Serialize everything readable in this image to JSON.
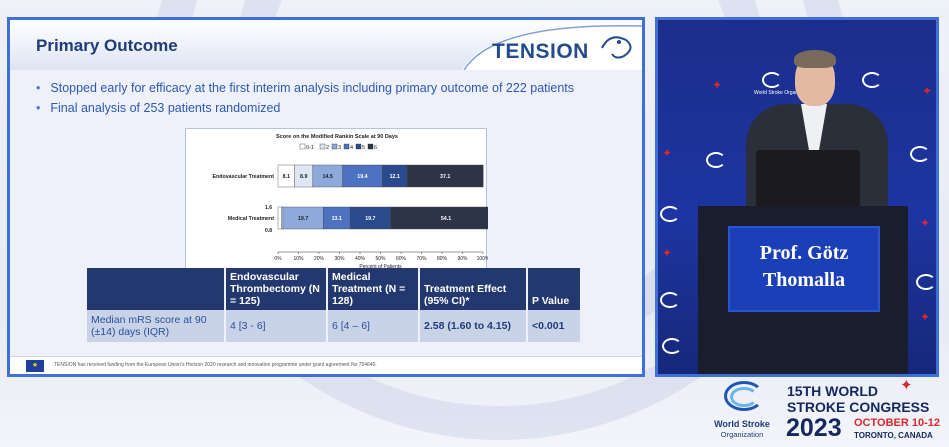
{
  "slide": {
    "title": "Primary Outcome",
    "logo_text": "TENSION",
    "bullets": [
      "Stopped early for efficacy at the first interim analysis including primary outcome of 222 patients",
      "Final analysis of 253 patients randomized"
    ],
    "footer_text": "TENSION has received funding from the European Union's Horizon 2020 research and innovation programme under grant agreement No 754640."
  },
  "chart_data": {
    "type": "bar",
    "orientation": "horizontal-stacked-percent",
    "title": "Score on the Modified Rankin Scale at 90 Days",
    "xlabel": "Percent of Patients",
    "ylabel": "",
    "xlim": [
      0,
      100
    ],
    "x_ticks": [
      "0%",
      "10%",
      "20%",
      "30%",
      "40%",
      "50%",
      "60%",
      "70%",
      "80%",
      "90%",
      "100%"
    ],
    "categories": [
      "0-1",
      "2",
      "3",
      "4",
      "5",
      "6"
    ],
    "colors": [
      "#ffffff",
      "#dfe6f3",
      "#8ea9dc",
      "#4d72bf",
      "#2b4a8e",
      "#2e3447"
    ],
    "rows": [
      {
        "label": "Endovascular Treatment",
        "values": [
          8.1,
          8.9,
          14.5,
          19.4,
          12.1,
          37.1
        ]
      },
      {
        "label": "Medical Treatment",
        "values": [
          1.6,
          0.8,
          19.7,
          13.1,
          19.7,
          54.1
        ]
      }
    ],
    "small_labels": [
      "1.6",
      "0.8"
    ],
    "grid": false,
    "legend": "top"
  },
  "table": {
    "headers": [
      "",
      "Endovascular Thrombectomy (N = 125)",
      "Medical Treatment (N = 128)",
      "Treatment Effect (95% CI)*",
      "P Value"
    ],
    "row": {
      "label": "Median mRS score at 90 (±14) days (IQR)",
      "endovascular": "4 [3 - 6]",
      "medical": "6 [4 – 6]",
      "effect": "2.58 (1.60 to 4.15)",
      "p_value": "<0.001"
    }
  },
  "camera": {
    "speaker_name": "Prof. Götz Thomalla",
    "wall_logo_label": "World Stroke Organization"
  },
  "branding": {
    "org_name": "World Stroke",
    "org_sub": "Organization",
    "congress_line1": "15TH WORLD",
    "congress_line2": "STROKE CONGRESS",
    "year": "2023",
    "dates": "OCTOBER 10-12",
    "city": "TORONTO, CANADA",
    "accent_color": "#d9272e",
    "brand_color": "#14275e"
  }
}
